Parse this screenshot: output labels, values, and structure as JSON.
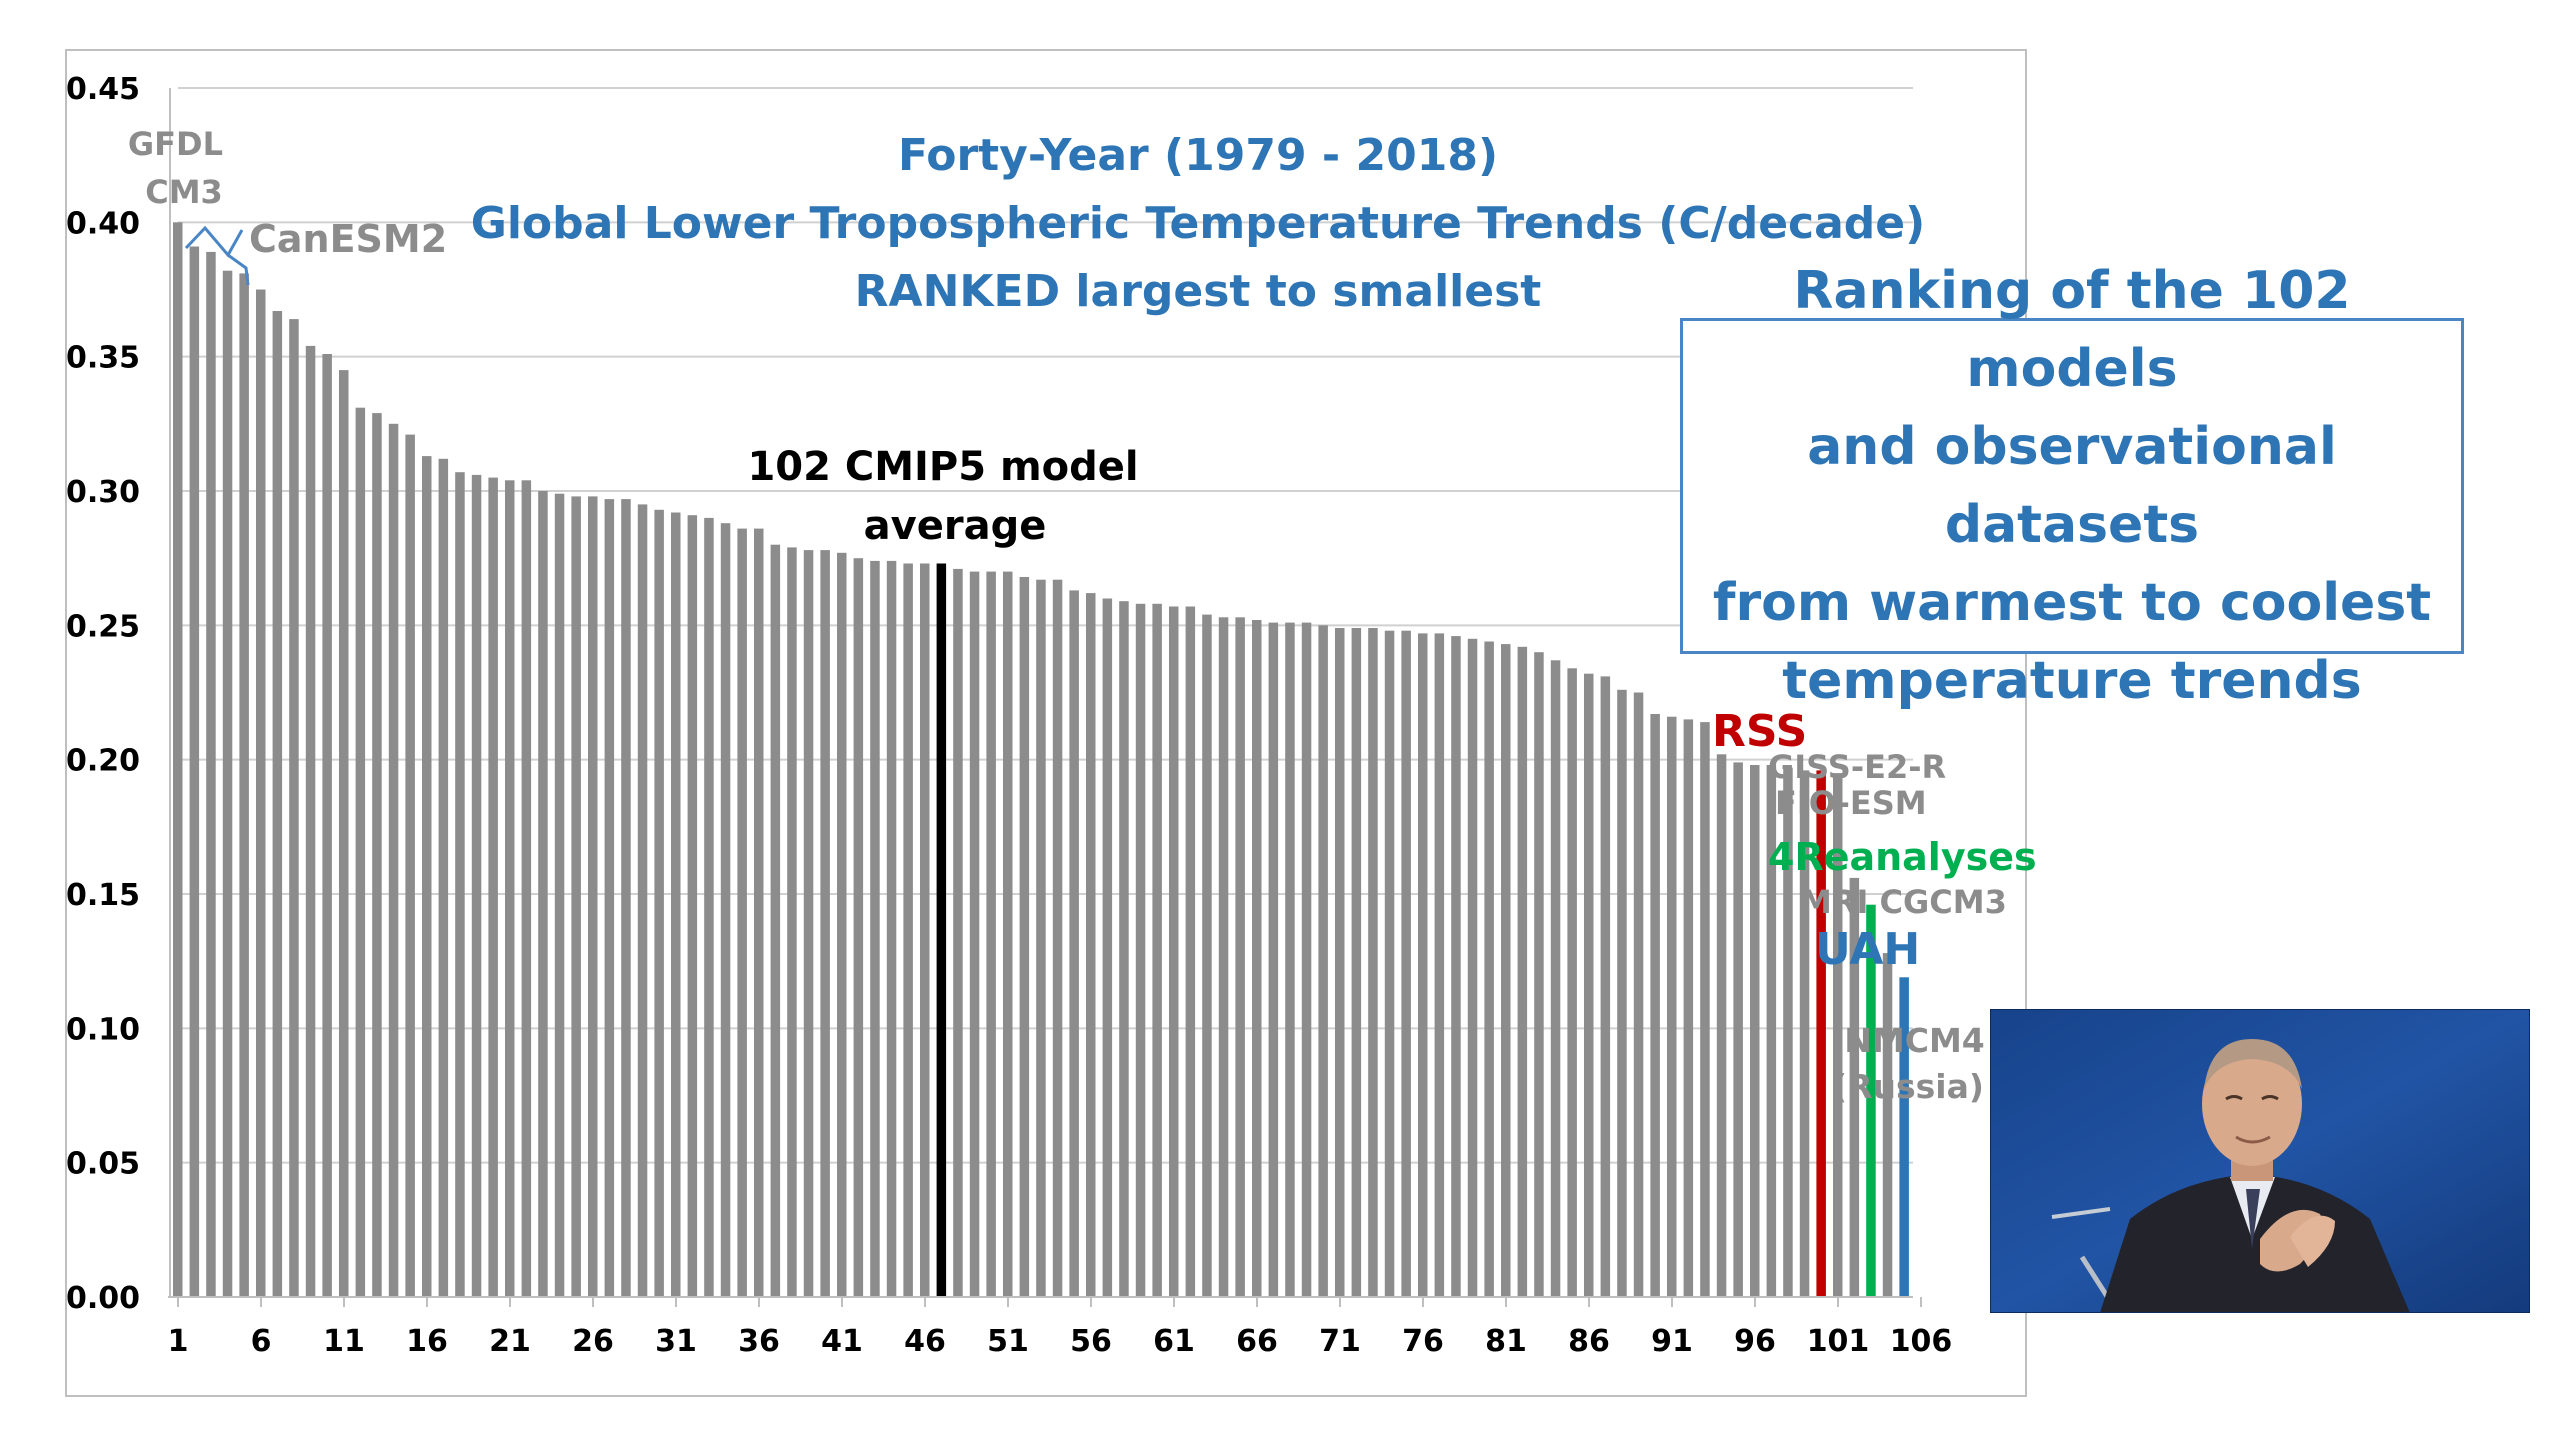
{
  "chart_data": {
    "type": "bar",
    "title_lines": [
      "Forty-Year (1979 - 2018)",
      "Global Lower Tropospheric Temperature Trends (C/decade)",
      "RANKED largest to smallest"
    ],
    "xlabel": "",
    "ylabel": "",
    "ylim": [
      0,
      0.45
    ],
    "y_ticks": [
      "0.00",
      "0.05",
      "0.10",
      "0.15",
      "0.20",
      "0.25",
      "0.30",
      "0.35",
      "0.40",
      "0.45"
    ],
    "x_ticks": [
      "1",
      "6",
      "11",
      "16",
      "21",
      "26",
      "31",
      "36",
      "41",
      "46",
      "51",
      "56",
      "61",
      "66",
      "71",
      "76",
      "81",
      "86",
      "91",
      "96",
      "101",
      "106"
    ],
    "grid": true,
    "values": [
      0.4,
      0.391,
      0.389,
      0.382,
      0.381,
      0.375,
      0.367,
      0.364,
      0.354,
      0.351,
      0.345,
      0.331,
      0.329,
      0.325,
      0.321,
      0.313,
      0.312,
      0.307,
      0.306,
      0.305,
      0.304,
      0.304,
      0.3,
      0.299,
      0.298,
      0.298,
      0.297,
      0.297,
      0.295,
      0.293,
      0.292,
      0.291,
      0.29,
      0.288,
      0.286,
      0.286,
      0.28,
      0.279,
      0.278,
      0.278,
      0.277,
      0.275,
      0.274,
      0.274,
      0.273,
      0.273,
      0.273,
      0.271,
      0.27,
      0.27,
      0.27,
      0.268,
      0.267,
      0.267,
      0.263,
      0.262,
      0.26,
      0.259,
      0.258,
      0.258,
      0.257,
      0.257,
      0.254,
      0.253,
      0.253,
      0.252,
      0.251,
      0.251,
      0.251,
      0.25,
      0.249,
      0.249,
      0.249,
      0.248,
      0.248,
      0.247,
      0.247,
      0.246,
      0.245,
      0.244,
      0.243,
      0.242,
      0.24,
      0.237,
      0.234,
      0.232,
      0.231,
      0.226,
      0.225,
      0.217,
      0.216,
      0.215,
      0.214,
      0.202,
      0.199,
      0.198,
      0.198,
      0.197,
      0.196,
      0.196,
      0.195,
      0.156,
      0.146,
      0.128,
      0.119
    ],
    "bar_colors": {
      "default": "#8C8C8C",
      "highlights": [
        {
          "index": 46,
          "color": "#000000"
        },
        {
          "index": 99,
          "color": "#C00000"
        },
        {
          "index": 102,
          "color": "#00B050"
        },
        {
          "index": 104,
          "color": "#2E75B6"
        }
      ]
    },
    "annotations": {
      "gfdl": "GFDL\nCM3",
      "canesm": "CanESM2",
      "average": "102 CMIP5 model\naverage",
      "rss": "RSS",
      "giss": "GISS-E2-R",
      "fio": "FIO-ESM",
      "reanalyses": "4Reanalyses",
      "mri": "MRI CGCM3",
      "uah": "UAH",
      "inmcm": "INMCM4\n(Russia)"
    }
  },
  "callout": {
    "text": "Ranking of the 102 models\nand observational datasets\nfrom warmest to coolest\ntemperature trends"
  },
  "photo": {
    "icon": "person-applauding-photo",
    "colors": {
      "background": "#1B4E9A",
      "suit": "#22232B",
      "skin": "#D9A98C"
    }
  }
}
